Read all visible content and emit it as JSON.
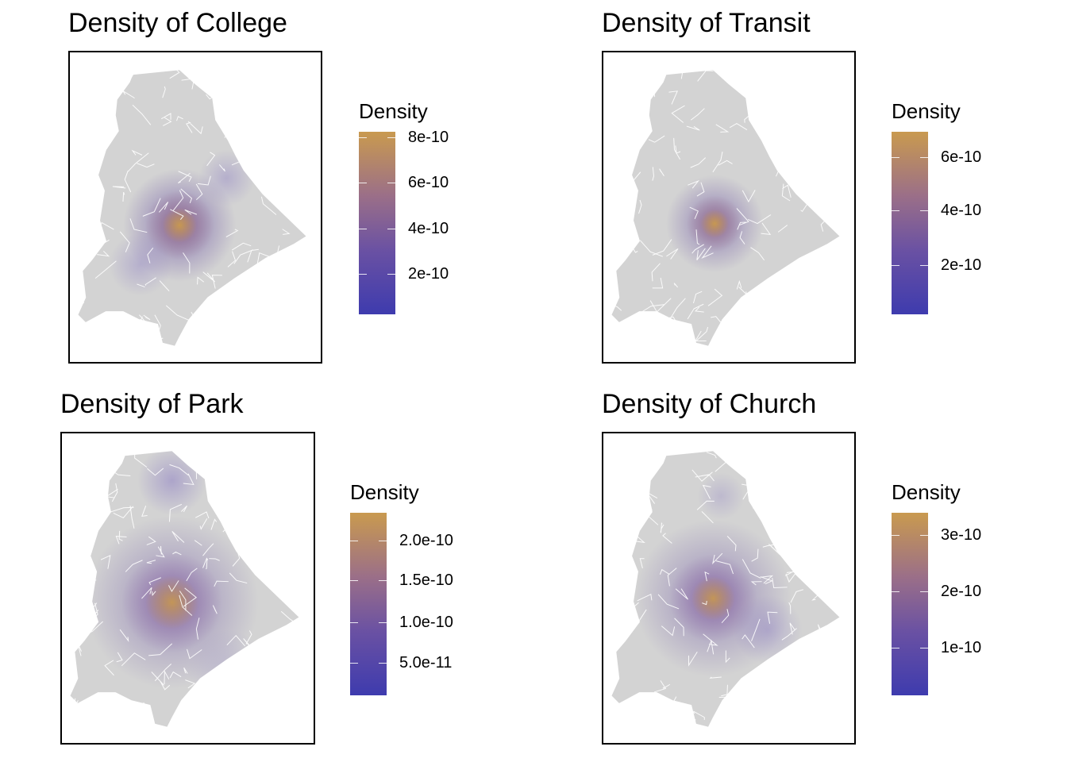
{
  "panels": [
    {
      "title": "Density of College",
      "legend_title": "Density",
      "hotspot_color": "#c99a4f",
      "legend_labels": [
        "8e-10",
        "6e-10",
        "4e-10",
        "2e-10"
      ],
      "legend_fractions": [
        0.97,
        0.72,
        0.47,
        0.22
      ]
    },
    {
      "title": "Density of Transit",
      "legend_title": "Density",
      "hotspot_color": "#c99a4f",
      "legend_labels": [
        "6e-10",
        "4e-10",
        "2e-10"
      ],
      "legend_fractions": [
        0.86,
        0.57,
        0.27
      ]
    },
    {
      "title": "Density of Park",
      "legend_title": "Density",
      "hotspot_color": "#c99a4f",
      "legend_labels": [
        "2.0e-10",
        "1.5e-10",
        "1.0e-10",
        "5.0e-11"
      ],
      "legend_fractions": [
        0.85,
        0.63,
        0.4,
        0.18
      ]
    },
    {
      "title": "Density of Church",
      "legend_title": "Density",
      "hotspot_color": "#c99a4f",
      "legend_labels": [
        "3e-10",
        "2e-10",
        "1e-10"
      ],
      "legend_fractions": [
        0.88,
        0.57,
        0.26
      ]
    }
  ],
  "colors": {
    "scale_low": "#3e3bae",
    "scale_high": "#c99a4f",
    "land": "#d3d3d3",
    "boundaries": "#ffffff"
  }
}
